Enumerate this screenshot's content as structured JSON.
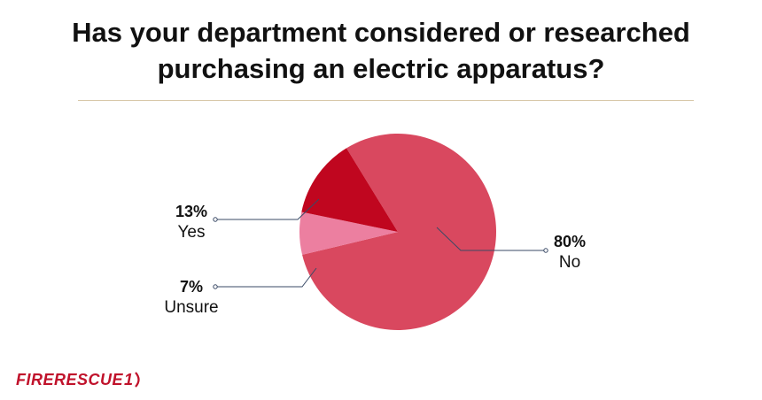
{
  "title_lines": [
    "Has your department considered or researched",
    "purchasing an electric apparatus?"
  ],
  "chart_data": {
    "type": "pie",
    "title": "Has your department considered or researched purchasing an electric apparatus?",
    "slices": [
      {
        "name": "No",
        "value": 80,
        "label": "80%",
        "color": "#d9485f"
      },
      {
        "name": "Unsure",
        "value": 7,
        "label": "7%",
        "color": "#ec7fa0"
      },
      {
        "name": "Yes",
        "value": 13,
        "label": "13%",
        "color": "#c0061f"
      }
    ],
    "label_placement": "outside with leader lines"
  },
  "logo": {
    "part1": "FIRE",
    "part2": "RESCUE",
    "part3": "1"
  },
  "colors": {
    "leader_line": "#3a4a66",
    "logo": "#c0122b"
  }
}
